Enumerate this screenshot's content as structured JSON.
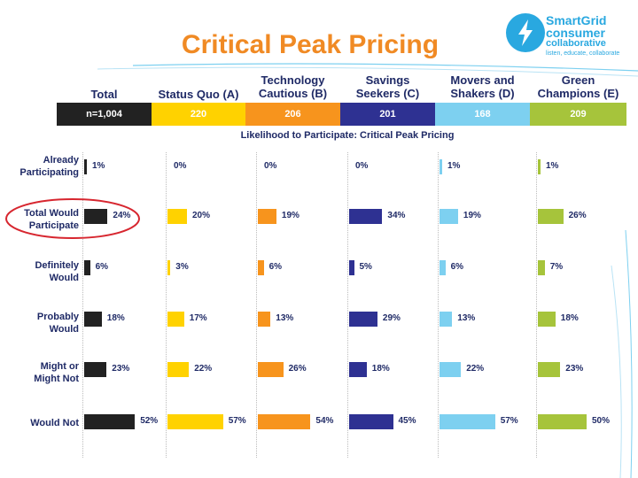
{
  "title": "Critical Peak Pricing",
  "logo": {
    "line1": "SmartGrid",
    "line2": "consumer",
    "line3": "collaborative",
    "tagline": "listen, educate, collaborate"
  },
  "colors": {
    "title": "#f08a24",
    "text": "#1f2a66",
    "total": "#222222",
    "status_quo": "#ffd200",
    "technology_cautious": "#f7941d",
    "savings_seekers": "#2e3192",
    "movers_shakers": "#7dd0f0",
    "green_champions": "#a6c43b",
    "highlight_circle": "#d7262f"
  },
  "chart_data": {
    "type": "bar",
    "title": "Likelihood to Participate: Critical Peak Pricing",
    "categories": [
      "Already Participating",
      "Total Would Participate",
      "Definitely Would",
      "Probably Would",
      "Might or Might Not",
      "Would Not"
    ],
    "series": [
      {
        "name": "Total",
        "n": "n=1,004",
        "values": [
          1,
          24,
          6,
          18,
          23,
          52
        ]
      },
      {
        "name": "Status Quo (A)",
        "n": "220",
        "values": [
          0,
          20,
          3,
          17,
          22,
          57
        ]
      },
      {
        "name": "Technology Cautious (B)",
        "n": "206",
        "values": [
          0,
          19,
          6,
          13,
          26,
          54
        ]
      },
      {
        "name": "Savings Seekers (C)",
        "n": "201",
        "values": [
          0,
          34,
          5,
          29,
          18,
          45
        ]
      },
      {
        "name": "Movers and Shakers (D)",
        "n": "168",
        "values": [
          1,
          19,
          6,
          13,
          22,
          57
        ]
      },
      {
        "name": "Green Champions (E)",
        "n": "209",
        "values": [
          1,
          26,
          7,
          18,
          23,
          50
        ]
      }
    ],
    "value_suffix": "%",
    "highlighted_category": "Total Would Participate"
  }
}
